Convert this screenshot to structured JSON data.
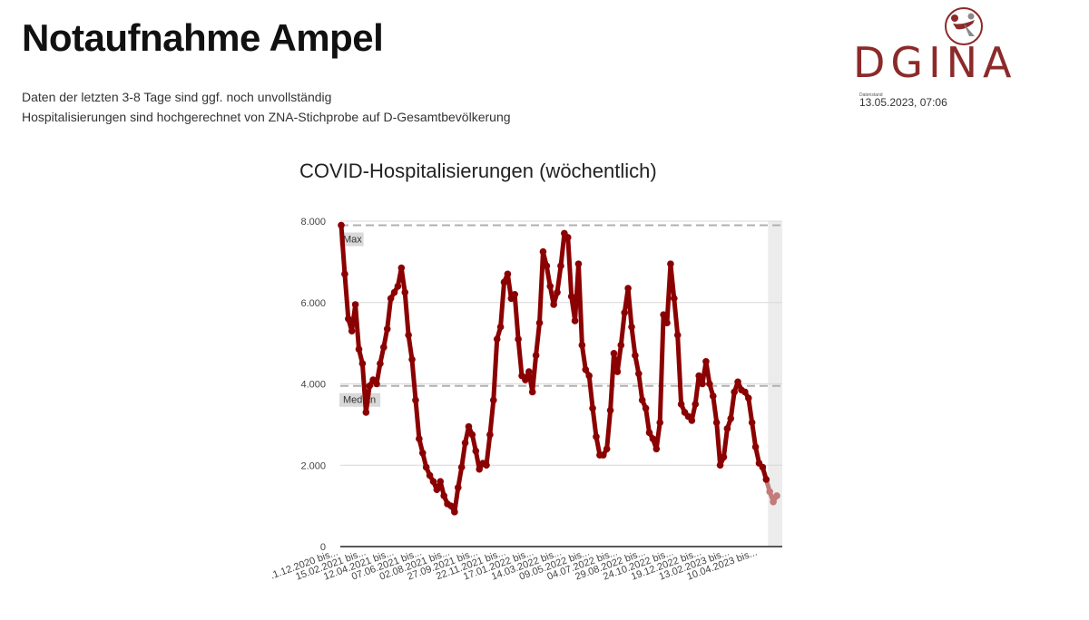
{
  "header": {
    "title": "Notaufnahme Ampel",
    "note_line1": "Daten der letzten 3-8 Tage sind ggf. noch unvollständig",
    "note_line2": "Hospitalisierungen sind hochgerechnet von ZNA-Stichprobe auf D-Gesamtbevölkerung",
    "timestamp_label": "Datenstand",
    "timestamp": "13.05.2023, 07:06"
  },
  "logo": {
    "text": "DGINA",
    "color": "#8c2a2a"
  },
  "chart_data": {
    "type": "line",
    "title": "COVID-Hospitalisierungen (wöchentlich)",
    "xlabel": "",
    "ylabel": "",
    "ylim": [
      0,
      8000
    ],
    "y_ticks": [
      0,
      2000,
      4000,
      6000,
      8000
    ],
    "y_tick_labels": [
      "0",
      "2.000",
      "4.000",
      "6.000",
      "8.000"
    ],
    "x_tick_labels": [
      ".1.12.2020 bis...",
      "15.02.2021 bis...",
      "12.04.2021 bis...",
      "07.06.2021 bis...",
      "02.08.2021 bis...",
      "27.09.2021 bis...",
      "22.11.2021 bis...",
      "17.01.2022 bis...",
      "14.03.2022 bis...",
      "09.05.2022 bis...",
      "04.07.2022 bis...",
      "29.08.2022 bis...",
      "24.10.2022 bis...",
      "19.12.2022 bis...",
      "13.02.2023 bis...",
      "10.04.2023 bis..."
    ],
    "reference_lines": [
      {
        "label": "Max",
        "value": 7900
      },
      {
        "label": "Median",
        "value": 3950
      }
    ],
    "grid": true,
    "series": [
      {
        "color": "#8b0000",
        "incomplete_color": "#c47a7a",
        "incomplete_count": 3,
        "values": [
          7900,
          6700,
          5600,
          5300,
          5950,
          4850,
          4500,
          3300,
          3950,
          4100,
          4000,
          4500,
          4900,
          5350,
          6100,
          6250,
          6400,
          6850,
          6250,
          5200,
          4600,
          3600,
          2650,
          2300,
          1950,
          1750,
          1600,
          1400,
          1600,
          1250,
          1050,
          1000,
          850,
          1450,
          1950,
          2550,
          2950,
          2750,
          2350,
          1900,
          2050,
          2000,
          2750,
          3600,
          5100,
          5400,
          6500,
          6700,
          6100,
          6200,
          5100,
          4200,
          4100,
          4300,
          3800,
          4700,
          5500,
          7250,
          6900,
          6400,
          5950,
          6250,
          6900,
          7700,
          7600,
          6150,
          5550,
          6950,
          4950,
          4350,
          4200,
          3400,
          2700,
          2250,
          2250,
          2400,
          3350,
          4750,
          4300,
          4950,
          5750,
          6350,
          5400,
          4700,
          4250,
          3600,
          3400,
          2800,
          2650,
          2400,
          3050,
          5700,
          5500,
          6950,
          6100,
          5200,
          3500,
          3300,
          3200,
          3100,
          3500,
          4200,
          4000,
          4550,
          4000,
          3700,
          3050,
          2000,
          2200,
          2900,
          3150,
          3800,
          4050,
          3850,
          3800,
          3650,
          3050,
          2450,
          2050,
          1950,
          1650,
          1350,
          1100,
          1250
        ]
      }
    ]
  }
}
